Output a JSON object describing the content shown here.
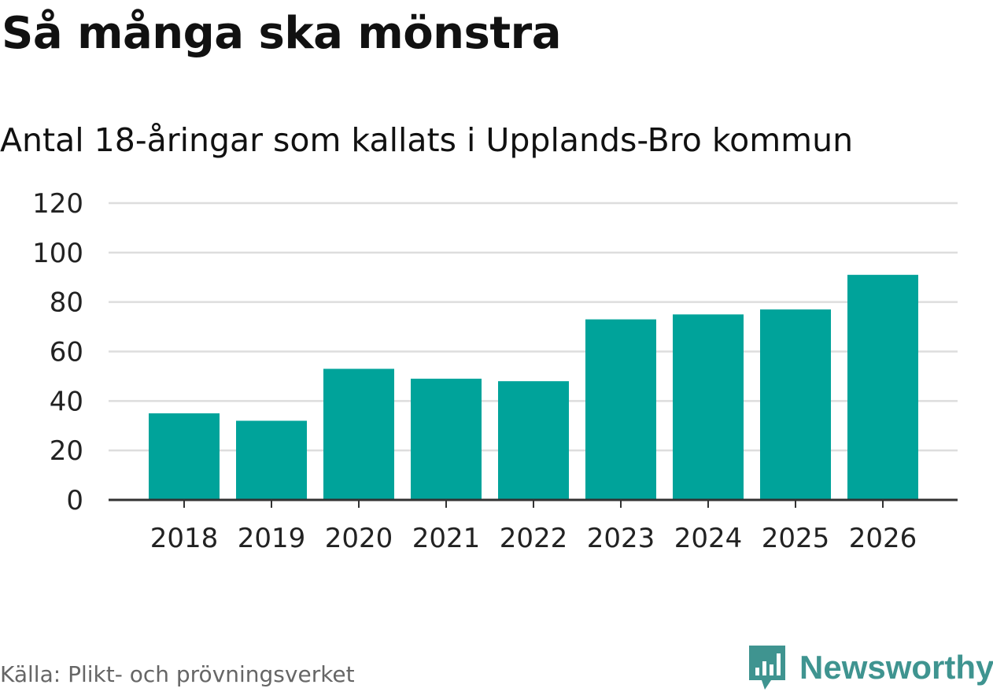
{
  "title": "Så många ska mönstra",
  "subtitle": "Antal 18-åringar som kallats i Upplands-Bro kommun",
  "source": "Källa: Plikt- och prövningsverket",
  "brand": {
    "name": "Newsworthy",
    "icon": "newsworthy-logo-icon",
    "color": "#3f9490"
  },
  "colors": {
    "bar": "#00a39a",
    "grid": "#dddddd",
    "axis": "#333333"
  },
  "chart_data": {
    "type": "bar",
    "title": "Så många ska mönstra",
    "subtitle": "Antal 18-åringar som kallats i Upplands-Bro kommun",
    "xlabel": "",
    "ylabel": "",
    "categories": [
      "2018",
      "2019",
      "2020",
      "2021",
      "2022",
      "2023",
      "2024",
      "2025",
      "2026"
    ],
    "values": [
      35,
      32,
      53,
      49,
      48,
      73,
      75,
      77,
      91
    ],
    "ylim": [
      0,
      120
    ],
    "yticks": [
      "0",
      "20",
      "40",
      "60",
      "80",
      "100",
      "120"
    ],
    "grid": true
  }
}
